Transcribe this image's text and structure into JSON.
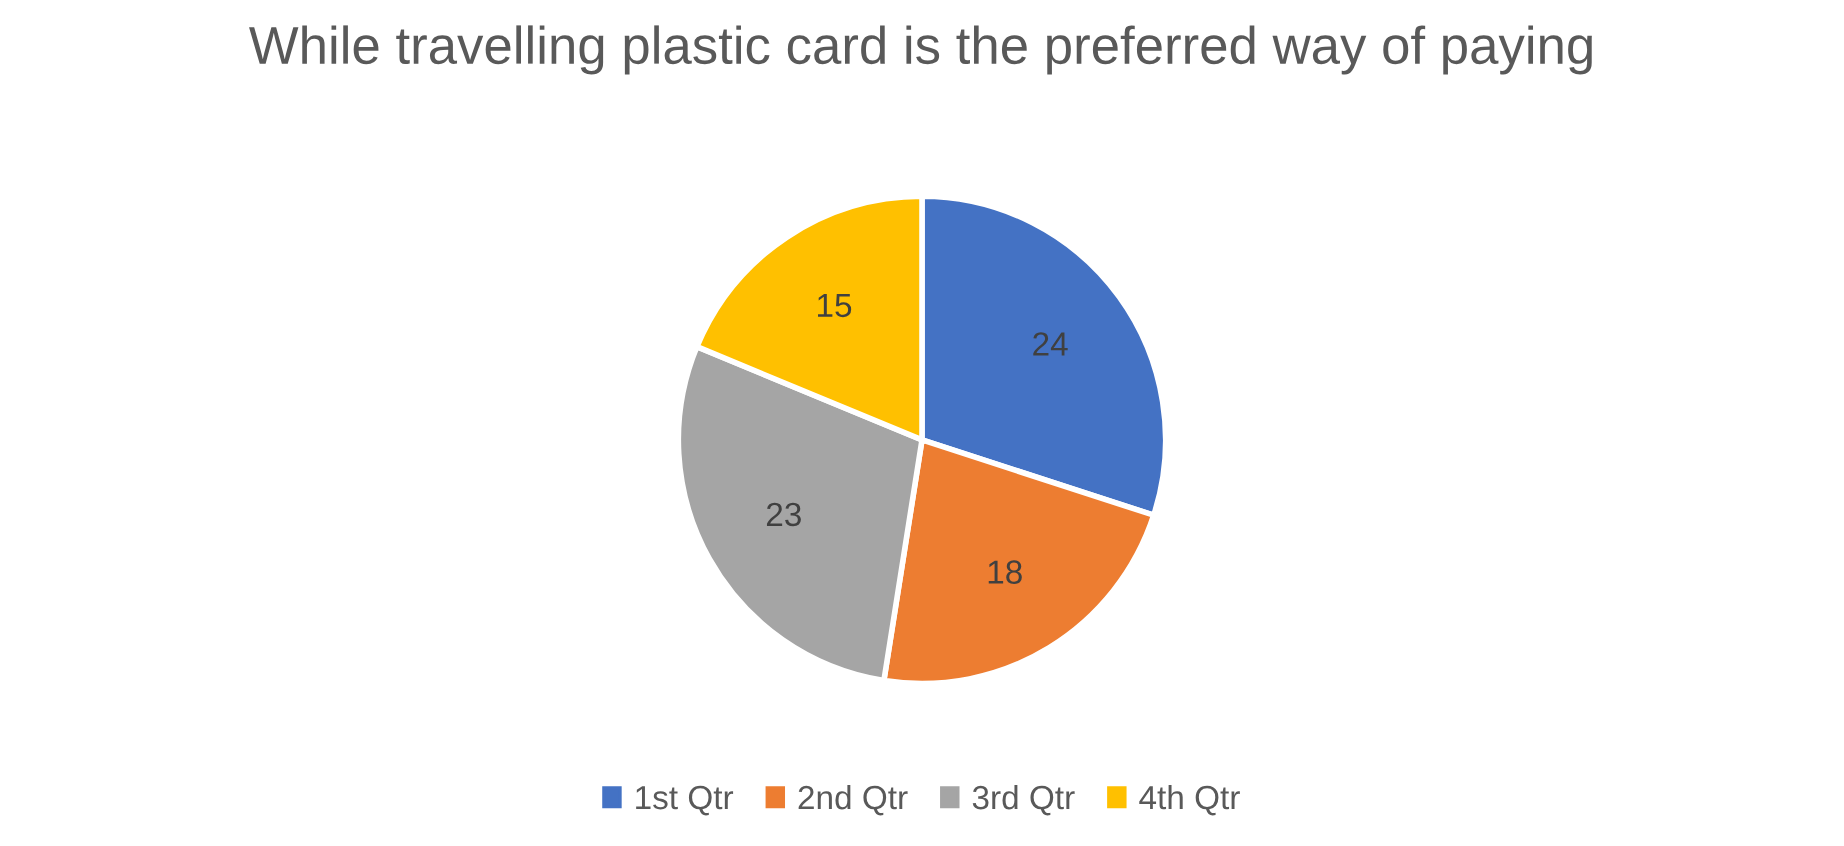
{
  "chart_data": {
    "type": "pie",
    "title": "While travelling plastic card is the preferred way of paying",
    "categories": [
      "1st Qtr",
      "2nd Qtr",
      "3rd Qtr",
      "4th Qtr"
    ],
    "values": [
      24,
      18,
      23,
      15
    ],
    "colors": [
      "#4472c4",
      "#ed7d31",
      "#a5a5a5",
      "#ffc000"
    ],
    "data_labels": true,
    "legend": "bottom"
  }
}
